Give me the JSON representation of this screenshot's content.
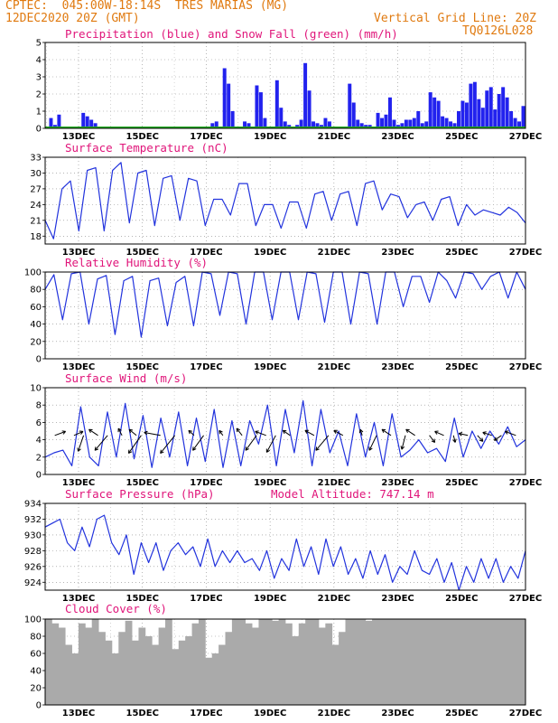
{
  "header": {
    "line1_left": "CPTEC:  045:00W-18:14S  TRES MARIAS (MG)",
    "line2_left": "12DEC2020 20Z (GMT)",
    "line2_right": "Vertical Grid Line: 20Z",
    "line3_right": "TQ0126L028"
  },
  "colors": {
    "header": "#e07a10",
    "title": "#e0157a",
    "line": "#2233dd",
    "precip": "#2222ee",
    "snow": "#22aa22",
    "cloud": "#aaaaaa",
    "arrow": "#000000"
  },
  "chart_data": [
    {
      "id": "precip",
      "type": "bar",
      "title": "Precipitation (blue) and Snow Fall (green) (mm/h)",
      "ylim": [
        0,
        5
      ],
      "yticks": [
        0,
        1,
        2,
        3,
        4,
        5
      ],
      "xticks": [
        "13DEC",
        "15DEC",
        "17DEC",
        "19DEC",
        "21DEC",
        "23DEC",
        "25DEC",
        "27DEC"
      ],
      "series": [
        {
          "name": "Precipitation",
          "values": [
            0,
            0.6,
            0.2,
            0.8,
            0.1,
            0,
            0,
            0,
            0,
            0.9,
            0.7,
            0.5,
            0.3,
            0,
            0,
            0,
            0,
            0,
            0,
            0,
            0,
            0,
            0,
            0,
            0,
            0,
            0,
            0,
            0,
            0,
            0,
            0,
            0,
            0,
            0,
            0,
            0,
            0,
            0.1,
            0,
            0,
            0.3,
            0.4,
            0,
            3.5,
            2.6,
            1.0,
            0,
            0,
            0.4,
            0.3,
            0,
            2.5,
            2.1,
            0.6,
            0,
            0,
            2.8,
            1.2,
            0.4,
            0.2,
            0,
            0.2,
            0.5,
            3.8,
            2.2,
            0.4,
            0.3,
            0.2,
            0.6,
            0.4,
            0.1,
            0,
            0,
            0,
            2.6,
            1.5,
            0.5,
            0.3,
            0.2,
            0.2,
            0.1,
            0.9,
            0.6,
            0.8,
            1.8,
            0.5,
            0.2,
            0.3,
            0.5,
            0.5,
            0.6,
            1.0,
            0.3,
            0.4,
            2.1,
            1.8,
            1.6,
            0.7,
            0.6,
            0.4,
            0.3,
            1.0,
            1.6,
            1.5,
            2.6,
            2.7,
            1.7,
            1.2,
            2.2,
            2.4,
            1.1,
            2.0,
            2.4,
            1.8,
            1.0,
            0.6,
            0.4,
            1.3
          ]
        },
        {
          "name": "Snow Fall",
          "values": [
            0
          ]
        }
      ]
    },
    {
      "id": "temp",
      "type": "line",
      "title": "Surface Temperature (nC)",
      "ylim": [
        16.5,
        33
      ],
      "yticks": [
        18,
        21,
        24,
        27,
        30,
        33
      ],
      "xticks": [
        "13DEC",
        "15DEC",
        "17DEC",
        "19DEC",
        "21DEC",
        "23DEC",
        "25DEC",
        "27DEC"
      ],
      "series": [
        {
          "name": "Temperature",
          "values": [
            21,
            17.5,
            27,
            28.5,
            19,
            30.5,
            31,
            19,
            30.5,
            32,
            20.5,
            30,
            30.5,
            20,
            29,
            29.5,
            21,
            29,
            28.5,
            20,
            25,
            25,
            22,
            28,
            28,
            20,
            24,
            24,
            19.5,
            24.5,
            24.5,
            19.5,
            26,
            26.5,
            21,
            26,
            26.5,
            20,
            28,
            28.5,
            23,
            26,
            25.5,
            21.5,
            24,
            24.5,
            21,
            25,
            25.5,
            20,
            24,
            22,
            23,
            22.5,
            22,
            23.5,
            22.5,
            20.5
          ]
        }
      ]
    },
    {
      "id": "rh",
      "type": "line",
      "title": "Relative Humidity (%)",
      "ylim": [
        0,
        100
      ],
      "yticks": [
        0,
        20,
        40,
        60,
        80,
        100
      ],
      "xticks": [
        "13DEC",
        "15DEC",
        "17DEC",
        "19DEC",
        "21DEC",
        "23DEC",
        "25DEC",
        "27DEC"
      ],
      "series": [
        {
          "name": "Relative Humidity",
          "values": [
            80,
            97,
            45,
            98,
            100,
            40,
            92,
            96,
            28,
            90,
            95,
            25,
            90,
            93,
            38,
            88,
            95,
            38,
            100,
            98,
            50,
            100,
            98,
            40,
            100,
            100,
            45,
            100,
            100,
            45,
            100,
            98,
            42,
            100,
            100,
            40,
            100,
            98,
            40,
            100,
            100,
            60,
            95,
            95,
            65,
            100,
            90,
            70,
            100,
            98,
            80,
            95,
            100,
            70,
            100,
            80
          ]
        }
      ]
    },
    {
      "id": "wind",
      "type": "line",
      "title": "Surface Wind (m/s)",
      "ylim": [
        0,
        10
      ],
      "yticks": [
        0,
        2,
        4,
        6,
        8,
        10
      ],
      "xticks": [
        "13DEC",
        "15DEC",
        "17DEC",
        "19DEC",
        "21DEC",
        "23DEC",
        "25DEC",
        "27DEC"
      ],
      "series": [
        {
          "name": "Wind speed",
          "values": [
            2,
            2.5,
            2.8,
            1,
            7.8,
            2,
            1,
            7.2,
            2,
            8.2,
            1.8,
            6.8,
            0.8,
            6.5,
            2,
            7.2,
            1,
            6.5,
            1.5,
            7.5,
            0.8,
            6.2,
            1,
            6.2,
            3.5,
            8,
            1,
            7.5,
            2.5,
            8.5,
            1,
            7.5,
            2.5,
            5,
            1,
            7,
            2,
            6,
            1,
            7,
            2,
            2.8,
            4,
            2.5,
            3,
            1.5,
            6.5,
            2,
            5,
            3,
            5,
            3.5,
            5.5,
            3.2,
            4
          ]
        }
      ],
      "arrows": [
        {
          "x": 0.02,
          "dx": 12,
          "dy": -8
        },
        {
          "x": 0.06,
          "dx": 10,
          "dy": -8
        },
        {
          "x": 0.08,
          "dx": -6,
          "dy": 32
        },
        {
          "x": 0.11,
          "dx": -10,
          "dy": -12
        },
        {
          "x": 0.13,
          "dx": -14,
          "dy": 30
        },
        {
          "x": 0.16,
          "dx": -4,
          "dy": -14
        },
        {
          "x": 0.19,
          "dx": -8,
          "dy": -12
        },
        {
          "x": 0.2,
          "dx": -14,
          "dy": 36
        },
        {
          "x": 0.24,
          "dx": -18,
          "dy": -6
        },
        {
          "x": 0.27,
          "dx": -16,
          "dy": 36
        },
        {
          "x": 0.31,
          "dx": -6,
          "dy": -10
        },
        {
          "x": 0.33,
          "dx": -12,
          "dy": 30
        },
        {
          "x": 0.37,
          "dx": -4,
          "dy": -10
        },
        {
          "x": 0.41,
          "dx": -6,
          "dy": -14
        },
        {
          "x": 0.44,
          "dx": -12,
          "dy": 30
        },
        {
          "x": 0.46,
          "dx": -12,
          "dy": -8
        },
        {
          "x": 0.48,
          "dx": -10,
          "dy": 34
        },
        {
          "x": 0.51,
          "dx": -8,
          "dy": -10
        },
        {
          "x": 0.56,
          "dx": -10,
          "dy": -10
        },
        {
          "x": 0.59,
          "dx": -14,
          "dy": 30
        },
        {
          "x": 0.62,
          "dx": -10,
          "dy": -10
        },
        {
          "x": 0.66,
          "dx": -2,
          "dy": -12
        },
        {
          "x": 0.69,
          "dx": -8,
          "dy": 30
        },
        {
          "x": 0.72,
          "dx": -10,
          "dy": -12
        },
        {
          "x": 0.75,
          "dx": -4,
          "dy": 28
        },
        {
          "x": 0.77,
          "dx": -10,
          "dy": -12
        },
        {
          "x": 0.8,
          "dx": 6,
          "dy": 14
        },
        {
          "x": 0.83,
          "dx": -10,
          "dy": -8
        },
        {
          "x": 0.85,
          "dx": 2,
          "dy": 14
        },
        {
          "x": 0.88,
          "dx": -10,
          "dy": -4
        },
        {
          "x": 0.9,
          "dx": 6,
          "dy": 12
        },
        {
          "x": 0.93,
          "dx": -10,
          "dy": -6
        },
        {
          "x": 0.95,
          "dx": -8,
          "dy": 10
        },
        {
          "x": 0.98,
          "dx": -12,
          "dy": -8
        }
      ]
    },
    {
      "id": "pressure",
      "type": "line",
      "title": "Surface Pressure (hPa)",
      "subtitle": "Model Altitude: 747.14 m",
      "ylim": [
        923,
        934
      ],
      "yticks": [
        924,
        926,
        928,
        930,
        932,
        934
      ],
      "xticks": [
        "13DEC",
        "15DEC",
        "17DEC",
        "19DEC",
        "21DEC",
        "23DEC",
        "25DEC",
        "27DEC"
      ],
      "series": [
        {
          "name": "Pressure",
          "values": [
            931,
            931.5,
            932,
            929,
            928,
            931,
            928.5,
            932,
            932.5,
            929,
            927.5,
            930,
            925,
            929,
            926.5,
            929,
            925.5,
            928,
            929,
            927.5,
            928.5,
            926,
            929.5,
            926,
            928,
            926.5,
            928,
            926.5,
            927,
            925.5,
            928,
            924.5,
            927,
            925.5,
            929.5,
            926,
            928.5,
            925,
            929.5,
            926,
            928.5,
            925,
            927,
            924.5,
            928,
            925,
            927.5,
            924,
            926,
            925,
            928,
            925.5,
            925,
            927,
            924,
            926.5,
            923,
            926,
            924,
            927,
            924.5,
            927,
            924,
            926,
            924.5,
            928
          ]
        }
      ]
    },
    {
      "id": "cloud",
      "type": "area",
      "title": "Cloud Cover (%)",
      "ylim": [
        0,
        100
      ],
      "yticks": [
        0,
        20,
        40,
        60,
        80,
        100
      ],
      "xticks": [
        "13DEC",
        "15DEC",
        "17DEC",
        "19DEC",
        "21DEC",
        "23DEC",
        "25DEC",
        "27DEC"
      ],
      "series": [
        {
          "name": "Cloud Cover",
          "values": [
            100,
            95,
            90,
            70,
            60,
            95,
            90,
            100,
            85,
            75,
            60,
            85,
            98,
            75,
            90,
            80,
            70,
            90,
            100,
            65,
            75,
            80,
            95,
            100,
            55,
            60,
            70,
            85,
            100,
            100,
            95,
            90,
            100,
            100,
            98,
            100,
            95,
            80,
            95,
            100,
            100,
            90,
            95,
            70,
            85,
            100,
            100,
            100,
            98,
            100,
            100,
            100,
            100,
            100,
            100,
            100,
            100,
            100,
            100,
            100,
            100,
            100,
            100,
            100,
            100,
            100,
            100,
            100,
            100,
            100,
            100,
            100
          ]
        }
      ]
    }
  ]
}
